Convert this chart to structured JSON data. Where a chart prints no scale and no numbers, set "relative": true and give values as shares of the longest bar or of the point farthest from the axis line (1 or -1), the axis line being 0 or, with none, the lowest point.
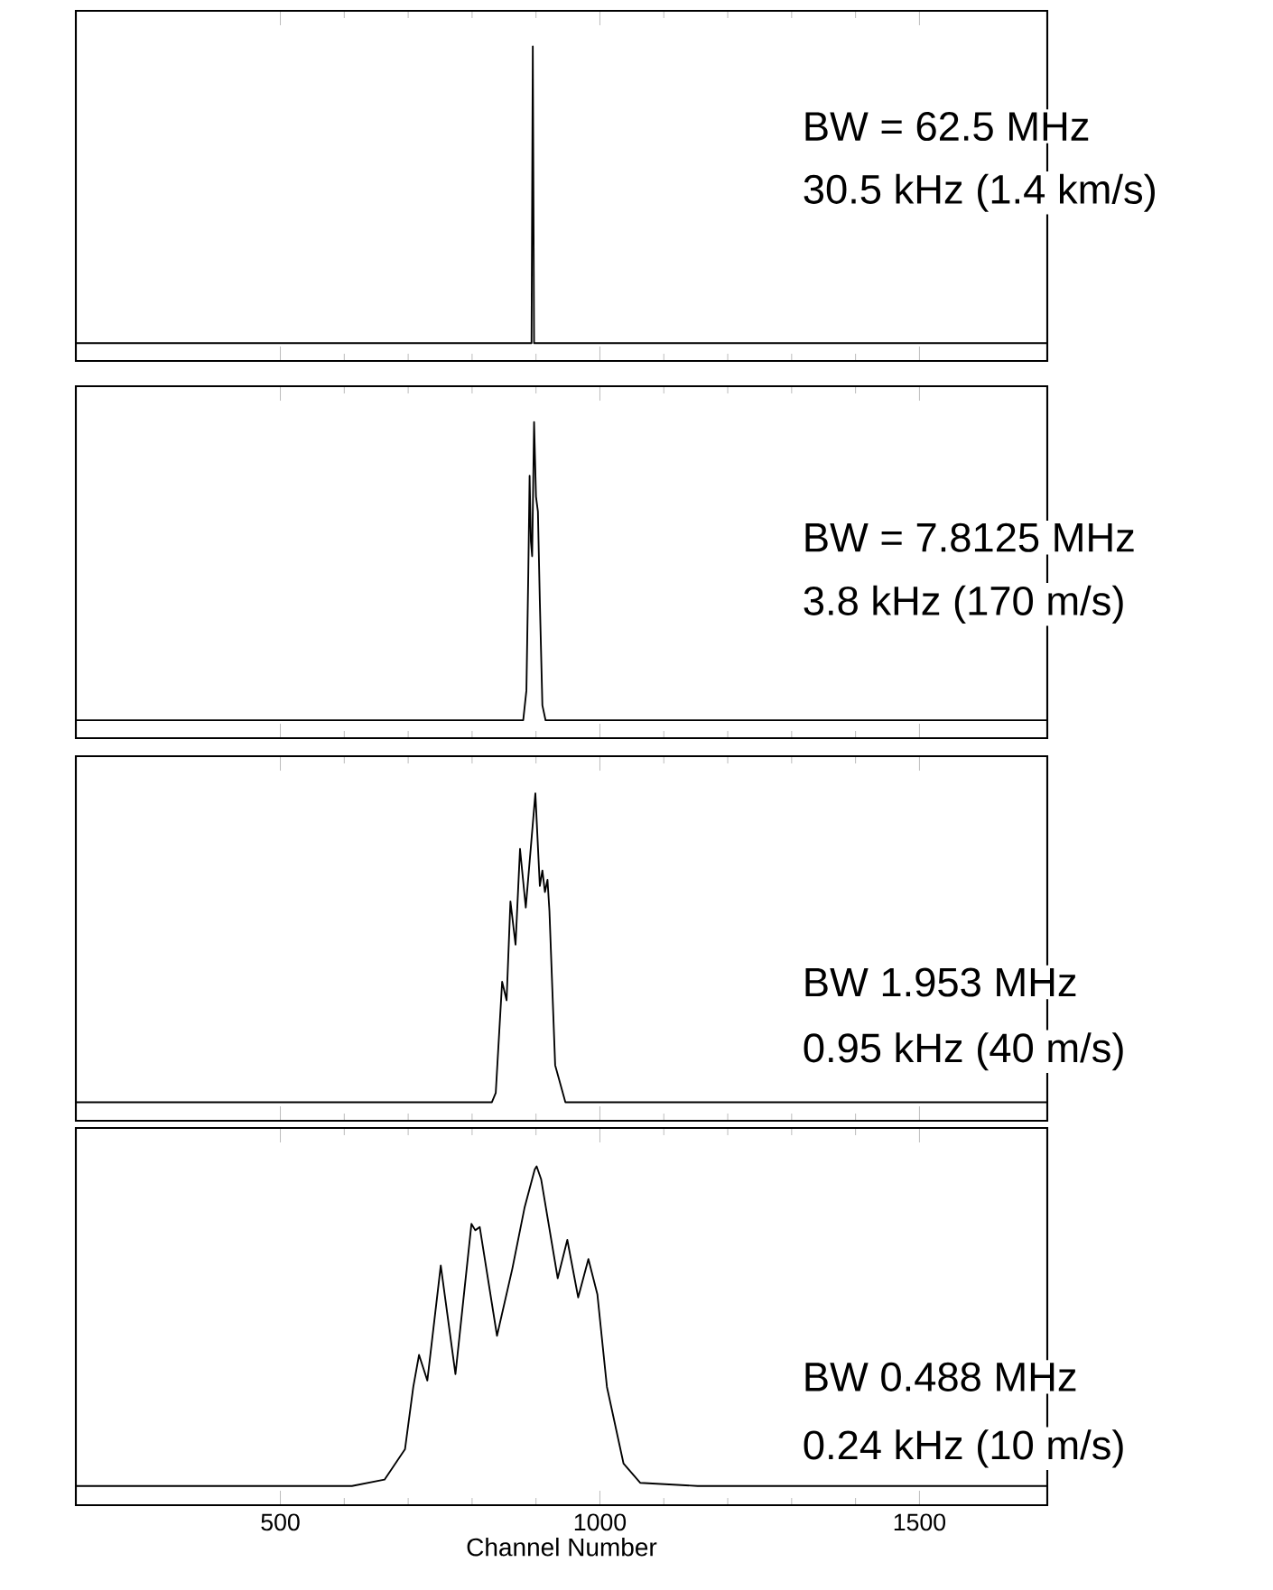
{
  "chart_data": [
    {
      "type": "line",
      "relative": true,
      "color": "#000000",
      "xlim": [
        180,
        1700
      ],
      "xticks": [
        {
          "value": 500,
          "label": null
        },
        {
          "value": 1000,
          "label": null
        },
        {
          "value": 1500,
          "label": null
        }
      ],
      "tick_labels": false,
      "x": [
        180,
        880,
        893,
        895,
        897,
        910,
        1700
      ],
      "values": [
        0,
        0,
        0,
        1,
        0,
        0,
        0
      ],
      "annotations": [
        "BW = 62.5 MHz",
        "30.5 kHz (1.4 km/s)"
      ]
    },
    {
      "type": "line",
      "relative": true,
      "color": "#000000",
      "xlim": [
        180,
        1700
      ],
      "xticks": [
        {
          "value": 500,
          "label": null
        },
        {
          "value": 1000,
          "label": null
        },
        {
          "value": 1500,
          "label": null
        }
      ],
      "tick_labels": false,
      "x": [
        180,
        880,
        885,
        888,
        890,
        892,
        894,
        897,
        900,
        903,
        906,
        910,
        915,
        1700
      ],
      "values": [
        0,
        0,
        0.1,
        0.5,
        0.82,
        0.6,
        0.55,
        1.0,
        0.75,
        0.7,
        0.4,
        0.05,
        0,
        0
      ],
      "annotations": [
        "BW = 7.8125 MHz",
        "3.8 kHz (170 m/s)"
      ]
    },
    {
      "type": "line",
      "relative": true,
      "color": "#000000",
      "xlim": [
        180,
        1700
      ],
      "xticks": [
        {
          "value": 500,
          "label": null
        },
        {
          "value": 1000,
          "label": null
        },
        {
          "value": 1500,
          "label": null
        }
      ],
      "tick_labels": false,
      "x": [
        180,
        831,
        837,
        847,
        854,
        860,
        868,
        875,
        884,
        899,
        906,
        910,
        914,
        918,
        921,
        930,
        946,
        1700
      ],
      "values": [
        0,
        0,
        0.03,
        0.39,
        0.33,
        0.65,
        0.51,
        0.82,
        0.63,
        1.0,
        0.7,
        0.75,
        0.68,
        0.72,
        0.62,
        0.12,
        0,
        0
      ],
      "annotations": [
        "BW 1.953 MHz",
        "0.95 kHz (40 m/s)"
      ]
    },
    {
      "type": "line",
      "relative": true,
      "color": "#000000",
      "xlim": [
        180,
        1700
      ],
      "xticks": [
        500,
        1000,
        1500
      ],
      "tick_labels": "x",
      "xlabel": "Channel Number",
      "x": [
        180,
        612,
        663,
        695,
        708,
        717,
        730,
        751,
        774,
        799,
        805,
        812,
        839,
        863,
        882,
        898,
        901,
        908,
        934,
        949,
        966,
        982,
        996,
        1011,
        1037,
        1063,
        1153,
        1700
      ],
      "values": [
        0,
        0,
        0.02,
        0.115,
        0.31,
        0.41,
        0.33,
        0.69,
        0.35,
        0.82,
        0.8,
        0.81,
        0.47,
        0.68,
        0.87,
        0.99,
        1.0,
        0.96,
        0.65,
        0.77,
        0.59,
        0.71,
        0.6,
        0.31,
        0.07,
        0.01,
        0,
        0
      ],
      "annotations": [
        "BW 0.488 MHz",
        "0.24 kHz (10 m/s)"
      ]
    }
  ]
}
